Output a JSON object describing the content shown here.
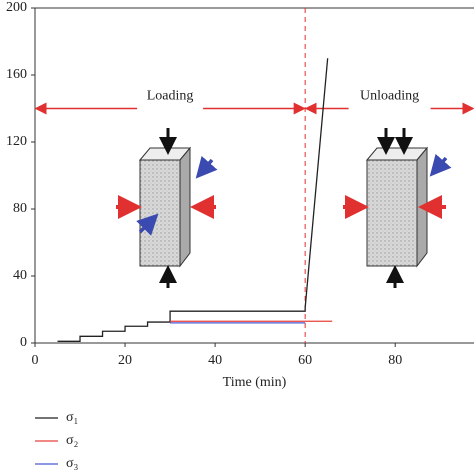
{
  "chart_data": {
    "type": "line",
    "x_label": "Time (min)",
    "xlim": [
      0,
      97.5
    ],
    "xticks": [
      0,
      20,
      40,
      60,
      80
    ],
    "ylim": [
      0,
      200
    ],
    "yticks": [
      0,
      40,
      80,
      120,
      160,
      200
    ],
    "series": [
      {
        "name": "σ₁",
        "color": "#222222",
        "x": [
          5,
          10,
          10,
          15,
          15,
          20,
          20,
          25,
          25,
          30,
          30,
          60,
          60,
          65
        ],
        "values": [
          1,
          1,
          4,
          4,
          7,
          7,
          10,
          10,
          12.5,
          12.5,
          19,
          19,
          21,
          170
        ]
      },
      {
        "name": "σ₂",
        "color": "#e8403a",
        "x": [
          30,
          66
        ],
        "values": [
          13,
          13
        ]
      },
      {
        "name": "σ₃",
        "color": "#4a5ad0",
        "x": [
          30,
          60
        ],
        "values": [
          12,
          12
        ]
      }
    ],
    "annotations": [
      {
        "text": "Loading",
        "x": [
          0,
          60
        ],
        "y": 140
      },
      {
        "text": "Unloading",
        "x": [
          60,
          97.5
        ],
        "y": 140
      }
    ],
    "divider_x": 60
  }
}
